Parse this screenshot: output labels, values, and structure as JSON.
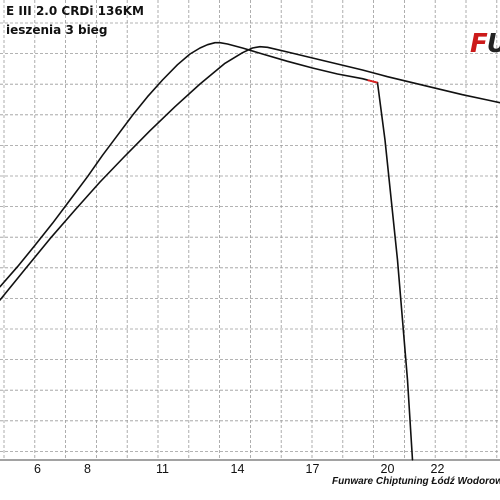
{
  "header": {
    "title_line1": "E III 2.0 CRDi 136KM",
    "title_line2": "ieszenia 3 bieg"
  },
  "logo": {
    "text_red": "F",
    "text_dark": "U"
  },
  "footer": {
    "text": "Funware Chiptuning Łódź Wodorowa"
  },
  "chart_data": {
    "type": "line",
    "title": "",
    "xlabel": "",
    "ylabel": "",
    "xlim": [
      4.5,
      24.5
    ],
    "x_tick_values": [
      6,
      8,
      11,
      14,
      17,
      20,
      22
    ],
    "x_tick_labels": [
      "6",
      "8",
      "11",
      "14",
      "17",
      "20",
      "22"
    ],
    "grid": true,
    "series": [
      {
        "x": [
          4.5,
          5.2,
          5.9,
          6.6,
          7.3,
          8.0,
          8.6,
          9.2,
          9.8,
          10.4,
          11.0,
          11.6,
          12.1,
          12.5,
          12.8,
          13.1,
          13.3,
          13.6,
          14.2,
          15.0,
          16.0,
          17.0,
          18.0,
          19.0,
          19.6
        ],
        "y": [
          26.0,
          29.0,
          32.2,
          35.5,
          39.0,
          42.5,
          45.7,
          48.7,
          51.7,
          54.5,
          57.0,
          59.3,
          60.9,
          61.8,
          62.3,
          62.6,
          62.6,
          62.4,
          61.8,
          60.9,
          59.8,
          58.8,
          57.9,
          57.2,
          56.6
        ]
      },
      {
        "x": [
          4.5,
          5.5,
          6.5,
          7.5,
          8.5,
          9.5,
          10.5,
          11.5,
          12.5,
          13.5,
          14.2,
          14.6,
          14.9,
          15.2,
          16.0,
          17.0,
          18.0,
          19.0,
          20.0,
          21.0,
          22.0,
          23.0,
          24.0,
          24.5
        ],
        "y": [
          24.0,
          28.6,
          33.2,
          37.5,
          41.7,
          45.6,
          49.4,
          53.0,
          56.4,
          59.5,
          61.1,
          61.8,
          62.0,
          61.9,
          61.2,
          60.3,
          59.4,
          58.5,
          57.5,
          56.6,
          55.7,
          54.8,
          54.0,
          53.6
        ]
      },
      {
        "x": [
          19.6,
          19.9,
          20.4,
          20.8,
          21.0
        ],
        "y": [
          56.6,
          48.0,
          30.0,
          12.0,
          0.0
        ]
      }
    ],
    "ylim": [
      0,
      69
    ]
  },
  "colors": {
    "curve": "#111111",
    "grid": "#9a9a9a",
    "accent": "#e02020",
    "logo_red": "#cc1a1a"
  }
}
